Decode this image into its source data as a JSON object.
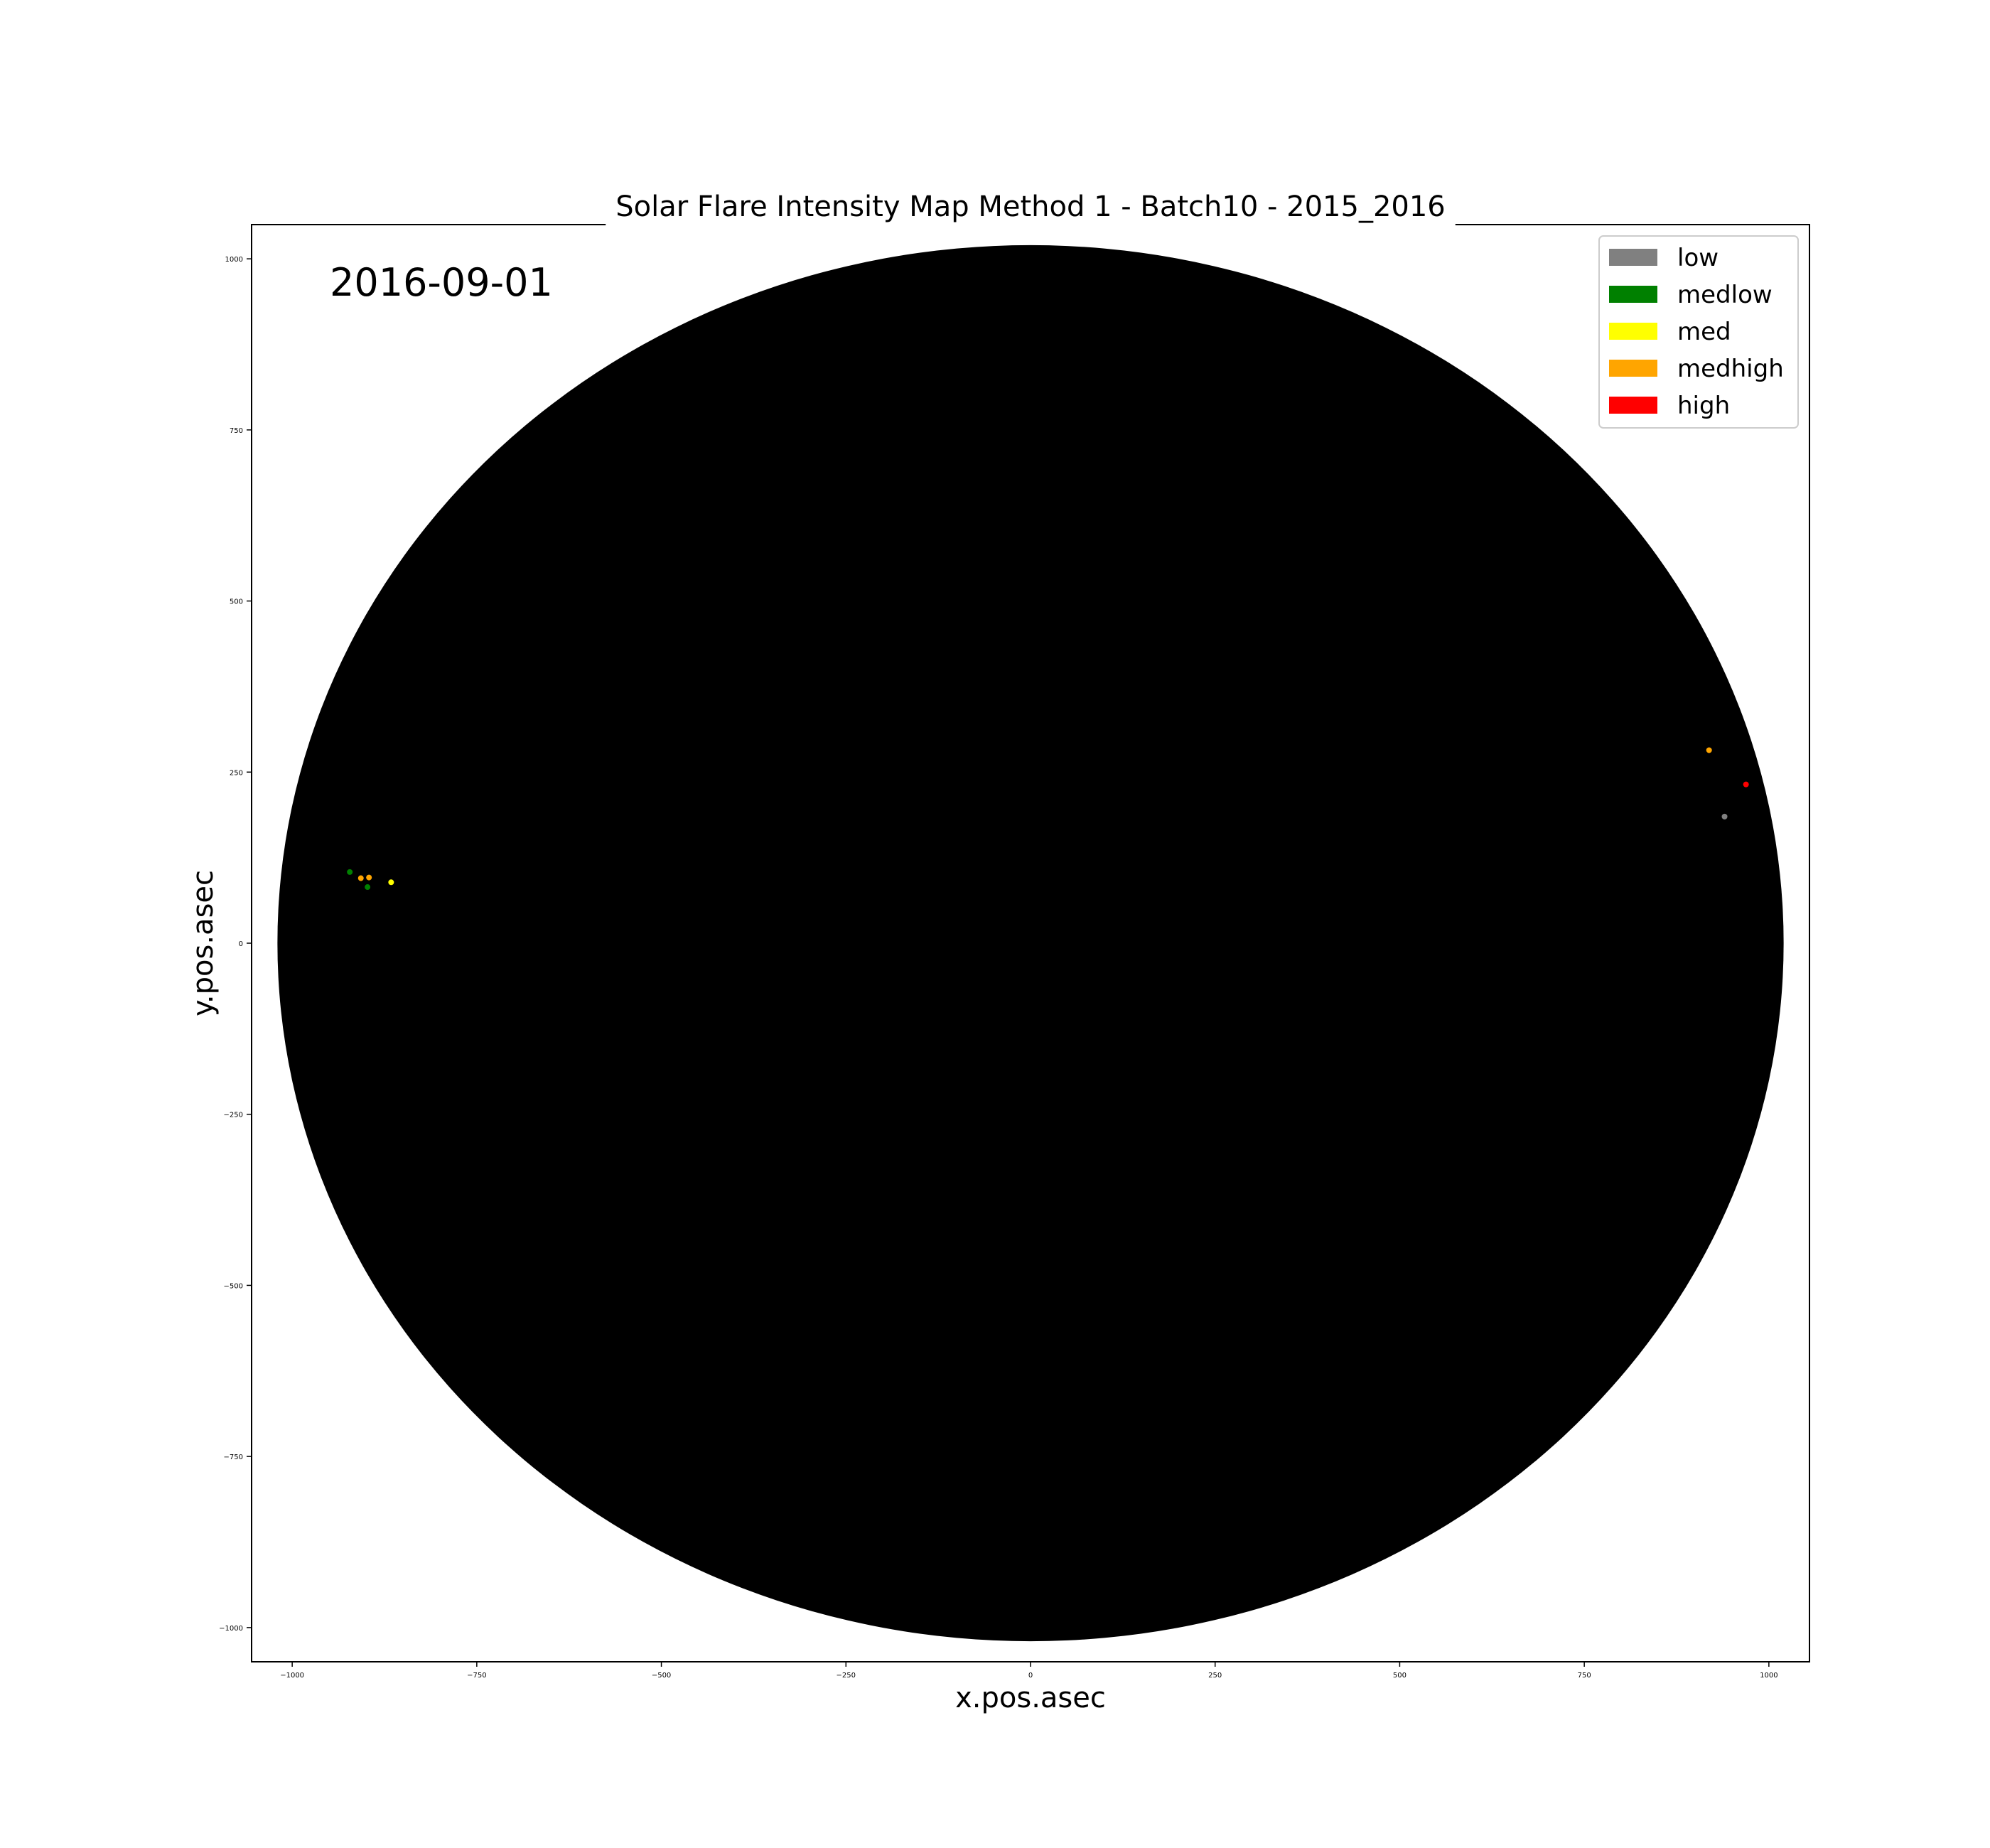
{
  "chart_data": {
    "type": "scatter",
    "title": "Solar Flare Intensity Map Method 1 - Batch10 - 2015_2016",
    "annotation": "2016-09-01",
    "xlabel": "x.pos.asec",
    "ylabel": "y.pos.asec",
    "xlim": [
      -1055,
      1055
    ],
    "ylim": [
      -1050,
      1050
    ],
    "xticks": [
      -1000,
      -750,
      -500,
      -250,
      0,
      250,
      500,
      750,
      1000
    ],
    "yticks": [
      -1000,
      -750,
      -500,
      -250,
      0,
      250,
      500,
      750,
      1000
    ],
    "xtick_labels": [
      "−1000",
      "−750",
      "−500",
      "−250",
      "0",
      "250",
      "500",
      "750",
      "1000"
    ],
    "ytick_labels": [
      "−1000",
      "−750",
      "−500",
      "−250",
      "0",
      "250",
      "500",
      "750",
      "1000"
    ],
    "disk": {
      "center": [
        0,
        0
      ],
      "radius": 1020,
      "color": "#000000"
    },
    "grid": false,
    "legend_position": "top-right",
    "legend": [
      {
        "name": "low",
        "color": "#808080"
      },
      {
        "name": "medlow",
        "color": "#008000"
      },
      {
        "name": "med",
        "color": "#ffff00"
      },
      {
        "name": "medhigh",
        "color": "#ffa500"
      },
      {
        "name": "high",
        "color": "#ff0000"
      }
    ],
    "series": [
      {
        "name": "low",
        "color": "#808080",
        "points": [
          [
            940,
            185
          ]
        ]
      },
      {
        "name": "medlow",
        "color": "#008000",
        "points": [
          [
            -922,
            104
          ],
          [
            -898,
            82
          ]
        ]
      },
      {
        "name": "med",
        "color": "#ffff00",
        "points": [
          [
            -866,
            89
          ]
        ]
      },
      {
        "name": "medhigh",
        "color": "#ffa500",
        "points": [
          [
            -907,
            95
          ],
          [
            -896,
            96
          ],
          [
            919,
            282
          ]
        ]
      },
      {
        "name": "high",
        "color": "#ff0000",
        "points": [
          [
            969,
            232
          ]
        ]
      }
    ]
  }
}
